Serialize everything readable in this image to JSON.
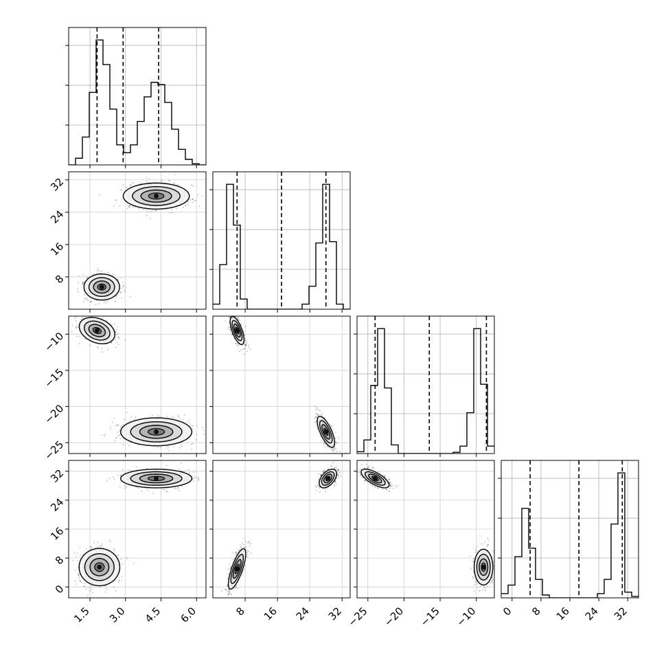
{
  "chart_data": {
    "type": "corner",
    "grid": true,
    "params": [
      {
        "range": [
          0.6,
          6.4
        ],
        "ticks": [
          1.5,
          3.0,
          4.5,
          6.0
        ],
        "tick_labels": [
          "1.5",
          "3.0",
          "4.5",
          "6.0"
        ],
        "quantiles": [
          1.8,
          2.9,
          4.4
        ]
      },
      {
        "range": [
          0.0,
          34.0
        ],
        "ticks": [
          8,
          16,
          24,
          32
        ],
        "tick_labels": [
          "8",
          "16",
          "24",
          "32"
        ],
        "quantiles": [
          6.0,
          17.0,
          28.0
        ]
      },
      {
        "range": [
          -26.5,
          -7.5
        ],
        "ticks": [
          -25,
          -20,
          -15,
          -10
        ],
        "tick_labels": [
          "−25",
          "−20",
          "−15",
          "−10"
        ],
        "quantiles": [
          -24.0,
          -16.5,
          -8.6
        ]
      },
      {
        "range": [
          -3.0,
          35.0
        ],
        "ticks": [
          0,
          8,
          16,
          24,
          32
        ],
        "tick_labels": [
          "0",
          "8",
          "16",
          "24",
          "32"
        ],
        "quantiles": [
          5.0,
          18.5,
          30.5
        ]
      }
    ],
    "histograms": [
      {
        "bin_edges": [
          0.6,
          0.89,
          1.18,
          1.47,
          1.76,
          2.05,
          2.34,
          2.63,
          2.92,
          3.21,
          3.5,
          3.79,
          4.08,
          4.37,
          4.66,
          4.95,
          5.24,
          5.53,
          5.82,
          6.11,
          6.4
        ],
        "counts": [
          0,
          60,
          250,
          650,
          1120,
          900,
          500,
          180,
          110,
          180,
          390,
          610,
          740,
          720,
          560,
          320,
          140,
          50,
          10,
          0
        ]
      },
      {
        "bin_edges": [
          0.0,
          1.7,
          3.4,
          5.1,
          6.8,
          8.5,
          10.2,
          11.9,
          13.6,
          15.3,
          17.0,
          18.7,
          20.4,
          22.1,
          23.8,
          25.5,
          27.2,
          28.9,
          30.6,
          32.3,
          34.0
        ],
        "counts": [
          40,
          350,
          980,
          660,
          80,
          0,
          0,
          0,
          0,
          0,
          0,
          0,
          0,
          40,
          180,
          520,
          980,
          530,
          40,
          0
        ]
      },
      {
        "bin_edges": [
          -26.5,
          -25.55,
          -24.6,
          -23.65,
          -22.7,
          -21.75,
          -20.8,
          -19.85,
          -18.9,
          -17.95,
          -17.0,
          -16.05,
          -15.1,
          -14.15,
          -13.2,
          -12.25,
          -11.3,
          -10.35,
          -9.4,
          -8.45,
          -7.5
        ],
        "counts": [
          15,
          110,
          550,
          1010,
          530,
          70,
          0,
          0,
          0,
          0,
          0,
          0,
          0,
          0,
          10,
          60,
          330,
          1010,
          560,
          60
        ]
      },
      {
        "bin_edges": [
          -3.0,
          -1.1,
          0.8,
          2.7,
          4.6,
          6.5,
          8.4,
          10.3,
          12.2,
          14.1,
          16.0,
          17.9,
          19.8,
          21.7,
          23.6,
          25.5,
          27.4,
          29.3,
          31.2,
          33.1,
          35.0
        ],
        "counts": [
          30,
          90,
          290,
          630,
          350,
          130,
          20,
          0,
          0,
          0,
          0,
          0,
          0,
          0,
          30,
          130,
          520,
          880,
          40,
          10
        ]
      }
    ],
    "pair_clusters": [
      {
        "x": 1,
        "y": 0,
        "blobs": [
          {
            "center": [
              2.0,
              5.5
            ],
            "sigma": [
              0.35,
              1.5
            ],
            "rho": 0.0
          },
          {
            "center": [
              4.3,
              28.0
            ],
            "sigma": [
              0.65,
              1.5
            ],
            "rho": 0.0
          }
        ]
      },
      {
        "x": 2,
        "y": 0,
        "blobs": [
          {
            "center": [
              1.8,
              -9.5
            ],
            "sigma": [
              0.35,
              0.85
            ],
            "rho": -0.3
          },
          {
            "center": [
              4.3,
              -23.5
            ],
            "sigma": [
              0.7,
              0.9
            ],
            "rho": 0.0
          }
        ]
      },
      {
        "x": 2,
        "y": 1,
        "blobs": [
          {
            "center": [
              6.0,
              -9.5
            ],
            "sigma": [
              0.8,
              0.9
            ],
            "rho": -0.65
          },
          {
            "center": [
              28.0,
              -23.5
            ],
            "sigma": [
              1.0,
              1.0
            ],
            "rho": -0.7
          }
        ]
      },
      {
        "x": 3,
        "y": 0,
        "blobs": [
          {
            "center": [
              1.9,
              5.5
            ],
            "sigma": [
              0.4,
              2.4
            ],
            "rho": 0.0
          },
          {
            "center": [
              4.3,
              30.0
            ],
            "sigma": [
              0.7,
              1.2
            ],
            "rho": 0.0
          }
        ]
      },
      {
        "x": 3,
        "y": 1,
        "blobs": [
          {
            "center": [
              6.0,
              5.0
            ],
            "sigma": [
              1.0,
              2.6
            ],
            "rho": 0.75
          },
          {
            "center": [
              28.5,
              30.0
            ],
            "sigma": [
              1.0,
              1.2
            ],
            "rho": 0.5
          }
        ]
      },
      {
        "x": 3,
        "y": 2,
        "blobs": [
          {
            "center": [
              -24.0,
              30.0
            ],
            "sigma": [
              0.9,
              1.2
            ],
            "rho": -0.7
          },
          {
            "center": [
              -9.0,
              5.5
            ],
            "sigma": [
              0.6,
              2.3
            ],
            "rho": 0.0
          }
        ]
      }
    ]
  }
}
